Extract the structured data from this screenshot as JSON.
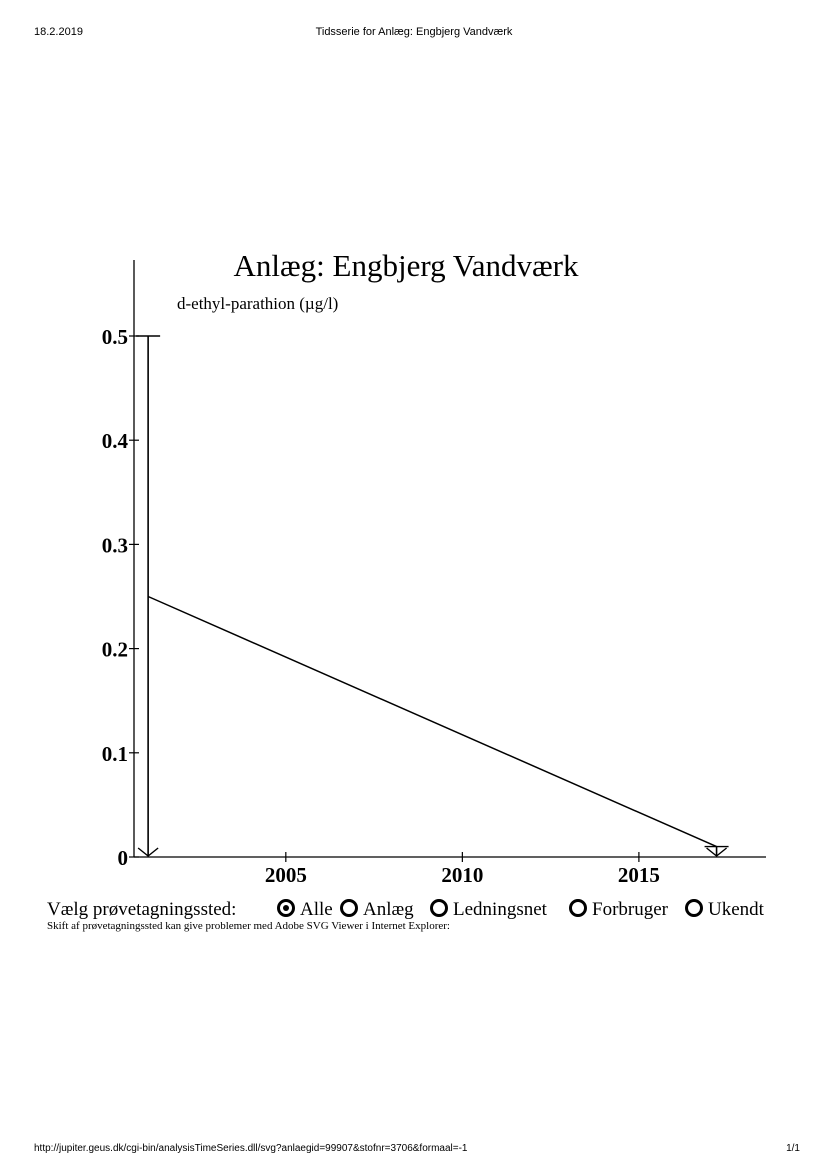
{
  "print_header": {
    "date": "18.2.2019",
    "title": "Tidsserie for Anlæg: Engbjerg Vandværk"
  },
  "print_footer": {
    "url": "http://jupiter.geus.dk/cgi-bin/analysisTimeSeries.dll/svg?anlaegid=99907&stofnr=3706&formaal=-1",
    "page": "1/1"
  },
  "chart_data": {
    "type": "line",
    "title": "Anlæg: Engbjerg Vandværk",
    "ylabel": "d-ethyl-parathion (µg/l)",
    "xlabel": "",
    "xlim": [
      2000.7,
      2018.6
    ],
    "ylim": [
      0,
      0.5
    ],
    "x_ticks": [
      2005,
      2010,
      2015
    ],
    "x_tick_labels": [
      "2005",
      "2010",
      "2015"
    ],
    "y_ticks": [
      0,
      0.1,
      0.2,
      0.3,
      0.4,
      0.5
    ],
    "y_tick_labels": [
      "0",
      "0.1",
      "0.2",
      "0.3",
      "0.4",
      "0.5"
    ],
    "grid": false,
    "series": [
      {
        "x": [
          2001.1,
          2017.2
        ],
        "y": [
          0.25,
          0.01
        ]
      }
    ],
    "detection_limit_markers": [
      {
        "x": 2001.1,
        "y": 0.5
      },
      {
        "x": 2017.2,
        "y": 0.01
      }
    ]
  },
  "site_chooser": {
    "label": "Vælg prøvetagningssted:",
    "options": [
      {
        "label": "Alle",
        "selected": true
      },
      {
        "label": "Anlæg",
        "selected": false
      },
      {
        "label": "Ledningsnet",
        "selected": false
      },
      {
        "label": "Forbruger",
        "selected": false
      },
      {
        "label": "Ukendt",
        "selected": false
      }
    ],
    "note": "Skift af prøvetagningssted kan give problemer med Adobe SVG Viewer i Internet Explorer:"
  }
}
